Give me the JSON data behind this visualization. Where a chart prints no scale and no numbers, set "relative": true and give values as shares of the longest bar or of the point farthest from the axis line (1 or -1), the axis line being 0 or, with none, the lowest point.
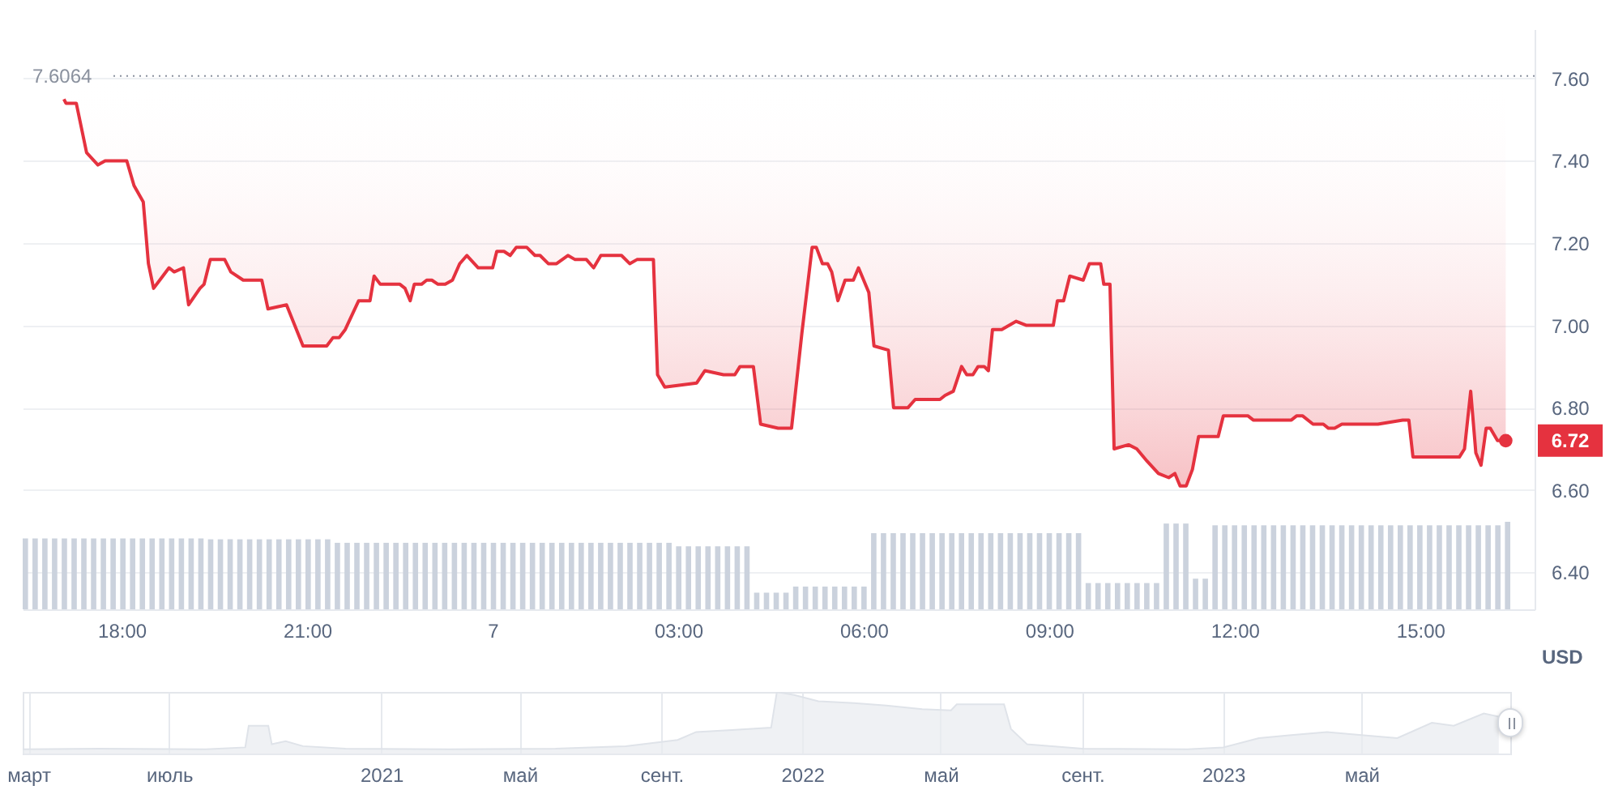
{
  "chart_data": [
    {
      "type": "line",
      "ylabel": "USD",
      "marker": "none",
      "line_style": "solid",
      "grid": "y",
      "x": [
        "2023-09-06T17:04",
        "2023-09-06T17:06",
        "2023-09-06T17:16",
        "2023-09-06T17:26",
        "2023-09-06T17:37",
        "2023-09-06T17:44",
        "2023-09-06T18:05",
        "2023-09-06T18:12",
        "2023-09-06T18:21",
        "2023-09-06T18:26",
        "2023-09-06T18:31",
        "2023-09-06T18:37",
        "2023-09-06T18:46",
        "2023-09-06T18:51",
        "2023-09-06T19:00",
        "2023-09-06T19:05",
        "2023-09-06T19:16",
        "2023-09-06T19:20",
        "2023-09-06T19:26",
        "2023-09-06T19:40",
        "2023-09-06T19:46",
        "2023-09-06T19:58",
        "2023-09-06T20:16",
        "2023-09-06T20:22",
        "2023-09-06T20:40",
        "2023-09-06T20:56",
        "2023-09-06T21:19",
        "2023-09-06T21:25",
        "2023-09-06T21:31",
        "2023-09-06T21:37",
        "2023-09-06T21:50",
        "2023-09-06T22:01",
        "2023-09-06T22:05",
        "2023-09-06T22:11",
        "2023-09-06T22:30",
        "2023-09-06T22:35",
        "2023-09-06T22:40",
        "2023-09-06T22:44",
        "2023-09-06T22:51",
        "2023-09-06T22:56",
        "2023-09-06T23:01",
        "2023-09-06T23:07",
        "2023-09-06T23:14",
        "2023-09-06T23:21",
        "2023-09-06T23:28",
        "2023-09-06T23:35",
        "2023-09-06T23:46",
        "2023-09-07T00:00",
        "2023-09-07T00:04",
        "2023-09-07T00:11",
        "2023-09-07T00:17",
        "2023-09-07T00:23",
        "2023-09-07T00:33",
        "2023-09-07T00:41",
        "2023-09-07T00:46",
        "2023-09-07T00:54",
        "2023-09-07T01:02",
        "2023-09-07T01:13",
        "2023-09-07T01:20",
        "2023-09-07T01:31",
        "2023-09-07T01:38",
        "2023-09-07T01:45",
        "2023-09-07T01:54",
        "2023-09-07T02:05",
        "2023-09-07T02:13",
        "2023-09-07T02:20",
        "2023-09-07T02:36",
        "2023-09-07T02:40",
        "2023-09-07T02:47",
        "2023-09-07T03:18",
        "2023-09-07T03:26",
        "2023-09-07T03:44",
        "2023-09-07T03:55",
        "2023-09-07T04:00",
        "2023-09-07T04:13",
        "2023-09-07T04:20",
        "2023-09-07T04:37",
        "2023-09-07T04:50",
        "2023-09-07T05:00",
        "2023-09-07T05:10",
        "2023-09-07T05:14",
        "2023-09-07T05:20",
        "2023-09-07T05:25",
        "2023-09-07T05:29",
        "2023-09-07T05:35",
        "2023-09-07T05:42",
        "2023-09-07T05:50",
        "2023-09-07T05:55",
        "2023-09-07T06:05",
        "2023-09-07T06:10",
        "2023-09-07T06:24",
        "2023-09-07T06:29",
        "2023-09-07T06:43",
        "2023-09-07T06:50",
        "2023-09-07T07:14",
        "2023-09-07T07:19",
        "2023-09-07T07:27",
        "2023-09-07T07:35",
        "2023-09-07T07:40",
        "2023-09-07T07:46",
        "2023-09-07T07:51",
        "2023-09-07T07:57",
        "2023-09-07T08:01",
        "2023-09-07T08:05",
        "2023-09-07T08:14",
        "2023-09-07T08:28",
        "2023-09-07T08:38",
        "2023-09-07T09:04",
        "2023-09-07T09:08",
        "2023-09-07T09:14",
        "2023-09-07T09:20",
        "2023-09-07T09:33",
        "2023-09-07T09:39",
        "2023-09-07T09:50",
        "2023-09-07T09:53",
        "2023-09-07T09:59",
        "2023-09-07T10:03",
        "2023-09-07T10:17",
        "2023-09-07T10:25",
        "2023-09-07T10:35",
        "2023-09-07T10:46",
        "2023-09-07T10:56",
        "2023-09-07T11:02",
        "2023-09-07T11:07",
        "2023-09-07T11:13",
        "2023-09-07T11:19",
        "2023-09-07T11:25",
        "2023-09-07T11:31",
        "2023-09-07T11:44",
        "2023-09-07T11:49",
        "2023-09-07T12:07",
        "2023-09-07T12:13",
        "2023-09-07T12:18",
        "2023-09-07T12:49",
        "2023-09-07T12:55",
        "2023-09-07T13:00",
        "2023-09-07T13:06",
        "2023-09-07T13:16",
        "2023-09-07T13:26",
        "2023-09-07T13:31",
        "2023-09-07T13:37",
        "2023-09-07T13:44",
        "2023-09-07T14:19",
        "2023-09-07T14:43",
        "2023-09-07T14:49",
        "2023-09-07T14:53",
        "2023-09-07T15:38",
        "2023-09-07T15:43",
        "2023-09-07T15:49",
        "2023-09-07T15:54",
        "2023-09-07T15:59",
        "2023-09-07T16:04",
        "2023-09-07T16:08",
        "2023-09-07T16:15",
        "2023-09-07T16:23"
      ],
      "series": [
        {
          "color": "#e5323f",
          "values": [
            7.55,
            7.54,
            7.54,
            7.42,
            7.39,
            7.4,
            7.4,
            7.34,
            7.3,
            7.15,
            7.09,
            7.11,
            7.14,
            7.13,
            7.14,
            7.05,
            7.09,
            7.1,
            7.16,
            7.16,
            7.13,
            7.11,
            7.11,
            7.04,
            7.05,
            6.95,
            6.95,
            6.97,
            6.97,
            6.99,
            7.06,
            7.06,
            7.12,
            7.1,
            7.1,
            7.09,
            7.06,
            7.1,
            7.1,
            7.11,
            7.11,
            7.1,
            7.1,
            7.11,
            7.15,
            7.17,
            7.14,
            7.14,
            7.18,
            7.18,
            7.17,
            7.19,
            7.19,
            7.17,
            7.17,
            7.15,
            7.15,
            7.17,
            7.16,
            7.16,
            7.14,
            7.17,
            7.17,
            7.17,
            7.15,
            7.16,
            7.16,
            6.88,
            6.85,
            6.86,
            6.89,
            6.88,
            6.88,
            6.9,
            6.9,
            6.76,
            6.75,
            6.75,
            6.98,
            7.19,
            7.19,
            7.15,
            7.15,
            7.13,
            7.06,
            7.11,
            7.11,
            7.14,
            7.08,
            6.95,
            6.94,
            6.8,
            6.8,
            6.82,
            6.82,
            6.83,
            6.84,
            6.9,
            6.88,
            6.88,
            6.9,
            6.9,
            6.89,
            6.99,
            6.99,
            7.01,
            7.0,
            7.0,
            7.06,
            7.06,
            7.12,
            7.11,
            7.15,
            7.15,
            7.1,
            7.1,
            6.7,
            6.71,
            6.7,
            6.67,
            6.64,
            6.63,
            6.64,
            6.61,
            6.61,
            6.65,
            6.73,
            6.73,
            6.73,
            6.78,
            6.78,
            6.78,
            6.77,
            6.77,
            6.77,
            6.78,
            6.78,
            6.76,
            6.76,
            6.75,
            6.75,
            6.76,
            6.76,
            6.77,
            6.77,
            6.68,
            6.68,
            6.7,
            6.84,
            6.69,
            6.66,
            6.75,
            6.75,
            6.72,
            6.72
          ],
          "lower": [
            7.55,
            7.54,
            7.54,
            7.42,
            7.39,
            7.4,
            7.4,
            7.34,
            7.3,
            7.15,
            7.09,
            7.11,
            7.14,
            7.13,
            7.14,
            7.05,
            7.09,
            7.1,
            7.16,
            7.16,
            7.13,
            7.11,
            7.11,
            7.04,
            7.05,
            6.95,
            6.95,
            6.97,
            6.97,
            6.99,
            7.06,
            7.06,
            7.12,
            7.1,
            7.1,
            7.09,
            7.06,
            7.1,
            7.1,
            7.11,
            7.11,
            7.1,
            7.1,
            7.11,
            7.15,
            7.17,
            7.14,
            7.14,
            7.18,
            7.18,
            7.17,
            7.19,
            7.19,
            7.17,
            7.17,
            7.15,
            7.15,
            7.17,
            7.16,
            7.16,
            7.14,
            7.17,
            7.17,
            7.17,
            7.15,
            7.16,
            7.16,
            6.88,
            6.85,
            6.86,
            6.89,
            6.88,
            6.88,
            6.9,
            6.9,
            6.76,
            6.75,
            6.75,
            6.98,
            7.19,
            7.19,
            7.15,
            7.15,
            7.13,
            7.06,
            7.11,
            7.11,
            7.14,
            7.08,
            6.95,
            6.94,
            6.8,
            6.8,
            6.82,
            6.82,
            6.83,
            6.84,
            6.9,
            6.88,
            6.88,
            6.9,
            6.9,
            6.89,
            6.99,
            6.99,
            7.01,
            7.0,
            7.0,
            7.06,
            7.06,
            7.12,
            7.11,
            7.15,
            7.15,
            7.1,
            7.1,
            6.7,
            6.71,
            6.7,
            6.67,
            6.64,
            6.63,
            6.64,
            6.61,
            6.61,
            6.65,
            6.73,
            6.73,
            6.73,
            6.78,
            6.78,
            6.78,
            6.77,
            6.77,
            6.77,
            6.78,
            6.78,
            6.76,
            6.76,
            6.75,
            6.75,
            6.76,
            6.76,
            6.77,
            6.77,
            6.68,
            6.68,
            6.7,
            6.84,
            6.69,
            6.66,
            6.75,
            6.75,
            6.72,
            6.72
          ],
          "upper": [
            7.6064,
            7.6064,
            7.6064,
            7.6064,
            7.6064,
            7.6064,
            7.6064,
            7.6064,
            7.6064,
            7.6064,
            7.6064,
            7.6064,
            7.6064,
            7.6064,
            7.6064,
            7.6064,
            7.6064,
            7.6064,
            7.6064,
            7.6064,
            7.6064,
            7.6064,
            7.6064,
            7.6064,
            7.6064,
            7.6064,
            7.6064,
            7.6064,
            7.6064,
            7.6064,
            7.6064,
            7.6064,
            7.6064,
            7.6064,
            7.6064,
            7.6064,
            7.6064,
            7.6064,
            7.6064,
            7.6064,
            7.6064,
            7.6064,
            7.6064,
            7.6064,
            7.6064,
            7.6064,
            7.6064,
            7.6064,
            7.6064,
            7.6064,
            7.6064,
            7.6064,
            7.6064,
            7.6064,
            7.6064,
            7.6064,
            7.6064,
            7.6064,
            7.6064,
            7.6064,
            7.6064,
            7.6064,
            7.6064,
            7.6064,
            7.6064,
            7.6064,
            7.6064,
            7.6064,
            7.6064,
            7.6064,
            7.6064,
            7.6064,
            7.6064,
            7.6064,
            7.6064,
            7.6064,
            7.6064,
            7.6064,
            7.6064,
            7.6064,
            7.6064,
            7.6064,
            7.6064,
            7.6064,
            7.6064,
            7.6064,
            7.6064,
            7.6064,
            7.6064,
            7.6064,
            7.6064,
            7.6064,
            7.6064,
            7.6064,
            7.6064,
            7.6064,
            7.6064,
            7.6064,
            7.6064,
            7.6064,
            7.6064,
            7.6064,
            7.6064,
            7.6064,
            7.6064,
            7.6064,
            7.6064,
            7.6064,
            7.6064,
            7.6064,
            7.6064,
            7.6064,
            7.6064,
            7.6064,
            7.6064,
            7.6064,
            7.6064,
            7.6064,
            7.6064,
            7.6064,
            7.6064,
            7.6064,
            7.6064,
            7.6064,
            7.6064,
            7.6064,
            7.6064,
            7.6064,
            7.6064,
            7.6064,
            7.6064,
            7.6064,
            7.6064,
            7.6064,
            7.6064,
            7.6064,
            7.6064,
            7.6064,
            7.6064,
            7.6064,
            7.6064,
            7.6064,
            7.6064,
            7.6064,
            7.6064,
            7.6064,
            7.6064,
            7.6064,
            7.6064,
            7.6064,
            7.6064,
            7.6064,
            7.6064,
            7.6064,
            7.6064
          ]
        }
      ],
      "xlim": [
        "2023-09-06T16:24",
        "2023-09-07T16:51"
      ],
      "ylim": [
        6.31,
        7.72
      ],
      "xticks": [
        {
          "value": "2023-09-06T18:00",
          "label": "18:00"
        },
        {
          "value": "2023-09-06T21:00",
          "label": "21:00"
        },
        {
          "value": "2023-09-07T00:00",
          "label": "7"
        },
        {
          "value": "2023-09-07T03:00",
          "label": "03:00"
        },
        {
          "value": "2023-09-07T06:00",
          "label": "06:00"
        },
        {
          "value": "2023-09-07T09:00",
          "label": "09:00"
        },
        {
          "value": "2023-09-07T12:00",
          "label": "12:00"
        },
        {
          "value": "2023-09-07T15:00",
          "label": "15:00"
        }
      ],
      "yticks": [
        {
          "value": 6.4,
          "label": "6.40"
        },
        {
          "value": 6.6,
          "label": "6.60"
        },
        {
          "value": 6.8,
          "label": "6.80"
        },
        {
          "value": 7.0,
          "label": "7.00"
        },
        {
          "value": 7.2,
          "label": "7.20"
        },
        {
          "value": 7.4,
          "label": "7.40"
        },
        {
          "value": 7.6,
          "label": "7.60"
        }
      ],
      "ref_lines": [
        {
          "axis": "y",
          "value": 7.6064,
          "label": "7.6064",
          "color": "#8a919e",
          "line_style": "dotted"
        }
      ],
      "annotations": [
        {
          "text": "6.72",
          "x": "2023-09-07T16:23",
          "y": 6.72
        }
      ]
    },
    {
      "type": "bar",
      "relative": true,
      "color": "#cbd2dd",
      "categories": [
        null,
        null,
        null,
        null,
        null,
        null,
        null,
        null,
        null,
        null,
        null,
        null,
        null,
        null,
        null,
        null,
        null,
        null,
        null,
        null,
        null,
        null,
        null,
        null,
        null,
        null,
        null,
        null,
        null,
        null,
        null,
        null,
        null,
        null,
        null,
        null,
        null,
        null,
        null,
        null,
        null,
        null,
        null,
        null,
        null,
        null,
        null,
        null,
        null,
        null,
        null,
        null,
        null,
        null,
        null,
        null,
        null,
        null,
        null,
        null,
        null,
        null,
        null,
        null,
        null,
        null,
        null,
        null,
        null,
        null,
        null,
        null,
        null,
        null,
        null,
        null,
        null,
        null,
        null,
        null,
        null,
        null,
        null,
        null,
        null,
        null,
        null,
        null,
        null,
        null,
        null,
        null,
        null,
        null,
        null,
        null,
        null,
        null,
        null,
        null,
        null,
        null,
        null,
        null,
        null,
        null,
        null,
        null,
        null,
        null,
        null,
        null,
        null,
        null,
        null,
        null,
        null,
        null,
        null,
        null,
        null,
        null,
        null,
        null,
        null,
        null,
        null,
        null,
        null,
        null,
        null,
        null,
        null,
        null,
        null,
        null,
        null,
        null,
        null,
        null,
        null,
        null,
        null,
        null,
        null,
        null,
        null,
        null,
        null,
        null,
        null,
        null,
        null
      ],
      "values": [
        0.81,
        0.81,
        0.81,
        0.81,
        0.81,
        0.81,
        0.81,
        0.81,
        0.81,
        0.81,
        0.81,
        0.81,
        0.81,
        0.81,
        0.81,
        0.81,
        0.81,
        0.81,
        0.81,
        0.8,
        0.8,
        0.8,
        0.8,
        0.8,
        0.8,
        0.8,
        0.8,
        0.8,
        0.8,
        0.8,
        0.8,
        0.8,
        0.76,
        0.76,
        0.76,
        0.76,
        0.76,
        0.76,
        0.76,
        0.76,
        0.76,
        0.76,
        0.76,
        0.76,
        0.76,
        0.76,
        0.76,
        0.76,
        0.76,
        0.76,
        0.76,
        0.76,
        0.76,
        0.76,
        0.76,
        0.76,
        0.76,
        0.76,
        0.76,
        0.76,
        0.76,
        0.76,
        0.76,
        0.76,
        0.76,
        0.76,
        0.76,
        0.72,
        0.72,
        0.72,
        0.72,
        0.72,
        0.72,
        0.72,
        0.72,
        0.19,
        0.19,
        0.19,
        0.19,
        0.26,
        0.26,
        0.26,
        0.26,
        0.26,
        0.26,
        0.26,
        0.26,
        0.87,
        0.87,
        0.87,
        0.87,
        0.87,
        0.87,
        0.87,
        0.87,
        0.87,
        0.87,
        0.87,
        0.87,
        0.87,
        0.87,
        0.87,
        0.87,
        0.87,
        0.87,
        0.87,
        0.87,
        0.87,
        0.87,
        0.3,
        0.3,
        0.3,
        0.3,
        0.3,
        0.3,
        0.3,
        0.3,
        0.98,
        0.98,
        0.98,
        0.35,
        0.35,
        0.96,
        0.96,
        0.96,
        0.96,
        0.96,
        0.96,
        0.96,
        0.96,
        0.96,
        0.96,
        0.96,
        0.96,
        0.96,
        0.96,
        0.96,
        0.96,
        0.96,
        0.96,
        0.96,
        0.96,
        0.96,
        0.96,
        0.96,
        0.96,
        0.96,
        0.96,
        0.96,
        0.96,
        0.96,
        0.96,
        1
      ]
    },
    {
      "type": "area",
      "relative": true,
      "color": "#e8ebef",
      "grid": "x",
      "x": [
        "2020-02-25",
        "2020-05-01",
        "2020-08-01",
        "2020-09-05",
        "2020-09-08",
        "2020-09-25",
        "2020-09-28",
        "2020-10-10",
        "2020-10-25",
        "2020-12-01",
        "2021-03-01",
        "2021-06-01",
        "2021-08-01",
        "2021-09-15",
        "2021-10-01",
        "2021-11-01",
        "2021-12-05",
        "2021-12-10",
        "2021-12-25",
        "2022-01-15",
        "2022-02-15",
        "2022-03-15",
        "2022-04-15",
        "2022-05-10",
        "2022-05-15",
        "2022-06-25",
        "2022-07-01",
        "2022-07-15",
        "2022-09-01",
        "2022-12-01",
        "2023-01-01",
        "2023-02-01",
        "2023-03-01",
        "2023-04-01",
        "2023-05-01",
        "2023-06-01",
        "2023-07-01",
        "2023-07-20",
        "2023-08-15",
        "2023-08-28"
      ],
      "values": [
        0.07,
        0.08,
        0.07,
        0.1,
        0.45,
        0.45,
        0.15,
        0.2,
        0.12,
        0.08,
        0.07,
        0.08,
        0.12,
        0.22,
        0.35,
        0.38,
        0.42,
        1,
        0.95,
        0.85,
        0.82,
        0.78,
        0.72,
        0.7,
        0.8,
        0.8,
        0.4,
        0.15,
        0.08,
        0.07,
        0.1,
        0.25,
        0.3,
        0.35,
        0.3,
        0.25,
        0.5,
        0.45,
        0.65,
        0.6
      ],
      "xlim": [
        "2020-02-25",
        "2023-09-07"
      ],
      "xticks": [
        {
          "value": "2020-03-01",
          "label": "март"
        },
        {
          "value": "2020-07-01",
          "label": "июль"
        },
        {
          "value": "2021-01-01",
          "label": "2021"
        },
        {
          "value": "2021-05-01",
          "label": "май"
        },
        {
          "value": "2021-09-01",
          "label": "сент."
        },
        {
          "value": "2022-01-01",
          "label": "2022"
        },
        {
          "value": "2022-05-01",
          "label": "май"
        },
        {
          "value": "2022-09-01",
          "label": "сент."
        },
        {
          "value": "2023-01-01",
          "label": "2023"
        },
        {
          "value": "2023-05-01",
          "label": "май"
        }
      ]
    }
  ]
}
